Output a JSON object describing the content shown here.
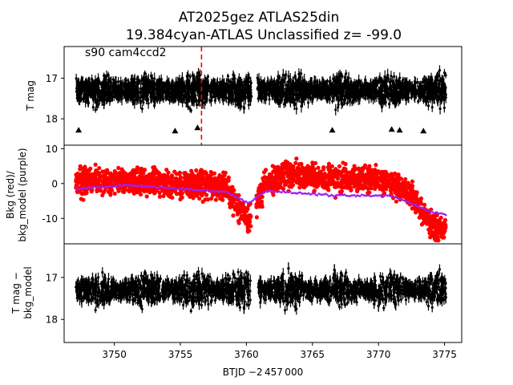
{
  "figure": {
    "title_line1": "AT2025gez  ATLAS25din",
    "title_line2": "19.384cyan-ATLAS Unclassified z= -99.0",
    "xlabel": "BTJD −2 457 000"
  },
  "chart_data": [
    {
      "type": "scatter",
      "panel": "top",
      "ylabel": "T mag",
      "annotation": "s90 cam4ccd2",
      "y_inverted": true,
      "xlim": [
        3746.2,
        3776.3
      ],
      "ylim": [
        18.65,
        16.22
      ],
      "yticks": [
        17,
        18
      ],
      "gaps": [
        [
          3760.4,
          3760.8
        ]
      ],
      "x_range": [
        3747.1,
        3775.1
      ],
      "band_center": 17.3,
      "band_halfwidth": 0.5,
      "marker_line_x": 3756.6,
      "marker_line_color": "#ff0000",
      "upper_limit_markers": [
        {
          "x": 3747.3,
          "y": 18.28
        },
        {
          "x": 3754.6,
          "y": 18.3
        },
        {
          "x": 3756.3,
          "y": 18.22
        },
        {
          "x": 3766.5,
          "y": 18.28
        },
        {
          "x": 3771.0,
          "y": 18.26
        },
        {
          "x": 3771.6,
          "y": 18.28
        },
        {
          "x": 3773.4,
          "y": 18.3
        }
      ],
      "series": [
        {
          "values_description": "",
          "color": "#000000"
        }
      ]
    },
    {
      "type": "scatter",
      "panel": "middle",
      "ylabel": "Bkg (red)/ bkg_model (purple)",
      "ylabel_line1": "Bkg (red)/",
      "ylabel_line2": "bkg_model (purple)",
      "xlim": [
        3746.2,
        3776.3
      ],
      "ylim": [
        -17.3,
        11.0
      ],
      "yticks": [
        -10,
        0,
        10
      ],
      "series": [
        {
          "name": "Bkg",
          "color": "#ff0000",
          "x": [
            3747.1,
            3749,
            3751,
            3753,
            3755,
            3757,
            3758.5,
            3759.3,
            3760.2,
            3760.8,
            3761.5,
            3763,
            3765,
            3767,
            3769,
            3771,
            3772,
            3773,
            3774,
            3775.1
          ],
          "y": [
            0,
            1,
            0.5,
            0.5,
            -0.5,
            0,
            -1,
            -7,
            -10,
            -5,
            0,
            3,
            2,
            1,
            2,
            0,
            -2,
            -6,
            -12,
            -14
          ],
          "spread": 3.2
        },
        {
          "name": "bkg_model",
          "color": "#a020f0",
          "x": [
            3747.1,
            3749,
            3751,
            3753,
            3755,
            3757,
            3758.5,
            3759.3,
            3760.2,
            3760.8,
            3761.5,
            3763,
            3765,
            3767,
            3769,
            3771,
            3772,
            3773,
            3774,
            3775.1
          ],
          "y": [
            -1.5,
            -1.0,
            -0.5,
            -1.0,
            -1.5,
            -2.0,
            -2.5,
            -4.0,
            -5.5,
            -4.0,
            -2.0,
            -2.5,
            -3.0,
            -3.5,
            -3.5,
            -3.5,
            -5.0,
            -6.5,
            -8.0,
            -9.0
          ]
        }
      ]
    },
    {
      "type": "scatter",
      "panel": "bottom",
      "ylabel": "T mag − bkg_model",
      "ylabel_line1": "T mag −",
      "ylabel_line2": "bkg_model",
      "y_inverted": true,
      "xlim": [
        3746.2,
        3776.3
      ],
      "ylim": [
        18.55,
        16.2
      ],
      "yticks": [
        17,
        18
      ],
      "xticks": [
        3750,
        3755,
        3760,
        3765,
        3770,
        3775
      ],
      "gaps": [
        [
          3760.3,
          3760.9
        ]
      ],
      "x_range": [
        3747.1,
        3775.1
      ],
      "band_center": 17.3,
      "band_halfwidth": 0.5,
      "series": [
        {
          "values_description": "",
          "color": "#000000"
        }
      ]
    }
  ]
}
